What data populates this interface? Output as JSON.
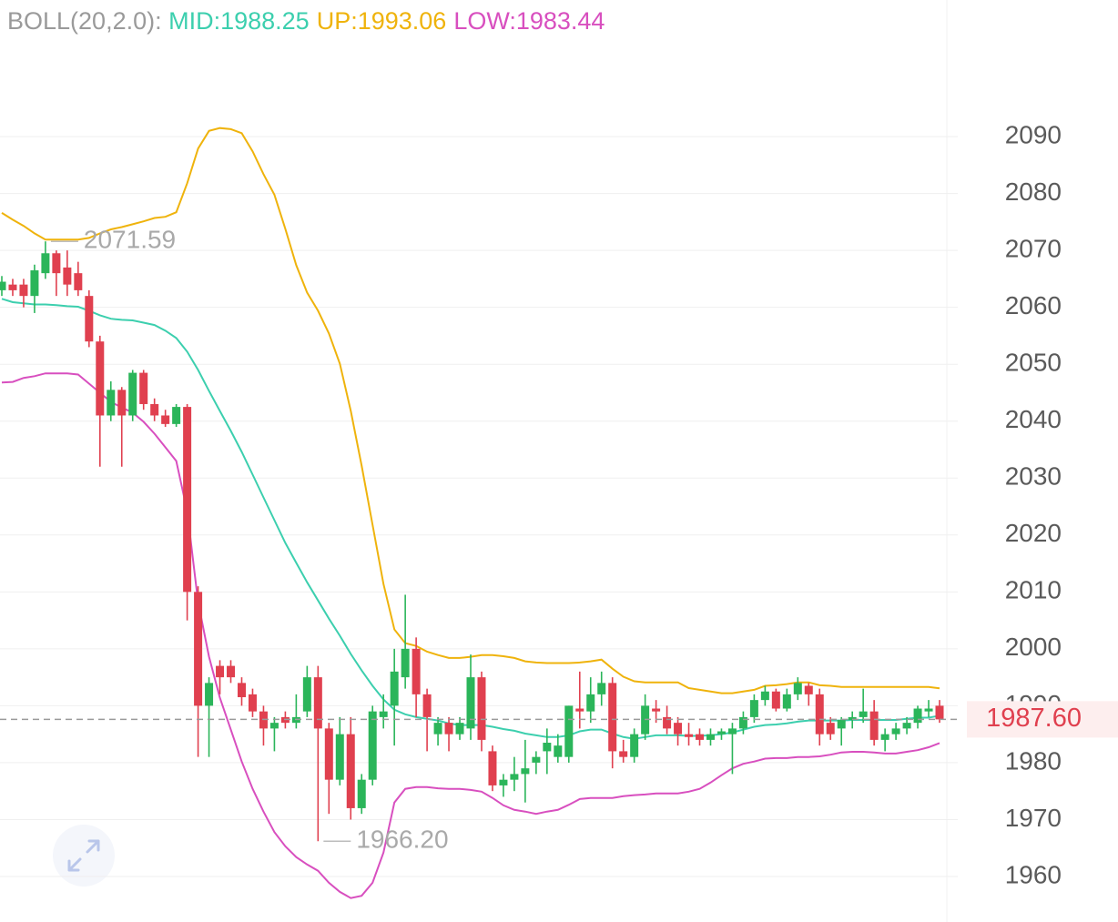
{
  "chart_data": {
    "type": "candlestick",
    "indicator": "BOLL(20,2.0):",
    "ylim": [
      1952,
      2114
    ],
    "yticks": [
      1960,
      1970,
      1980,
      1990,
      2000,
      2010,
      2020,
      2030,
      2040,
      2050,
      2060,
      2070,
      2080,
      2090
    ],
    "grid": true,
    "up_color": "#2bb55a",
    "down_color": "#e0404f",
    "open": [
      2063,
      2064,
      2064,
      2062,
      2066,
      2069.5,
      2067,
      2066,
      2062,
      2054,
      2041,
      2045.5,
      2041,
      2048.5,
      2043,
      2041,
      2039.5,
      2042.5,
      2010,
      1990,
      1997,
      1997,
      1994,
      1992,
      1989,
      1986,
      1988,
      1987,
      1989,
      1995,
      1986,
      1977,
      1985,
      1972,
      1977,
      1988,
      1990,
      1995,
      2000,
      1992,
      1985,
      1987,
      1985,
      1986,
      1995,
      1982,
      1976,
      1977,
      1978,
      1980,
      1982,
      1981,
      1981,
      1989.5,
      1989,
      1992,
      1994,
      1982,
      1981,
      1985,
      1989.5,
      1988,
      1987,
      1985,
      1985,
      1984,
      1985,
      1985,
      1986,
      1988,
      1991,
      1992.5,
      1989.5,
      1992,
      1993.5,
      1992,
      1987,
      1986,
      1987.5,
      1988,
      1989,
      1984,
      1985,
      1986,
      1987,
      1989,
      1990
    ],
    "high": [
      2065.5,
      2065,
      2065,
      2067.5,
      2071.59,
      2070,
      2070,
      2068,
      2063,
      2055,
      2047,
      2046,
      2049,
      2049,
      2044,
      2042,
      2043,
      2043,
      2011,
      1995,
      1998,
      1998,
      1995,
      1993,
      1990,
      1988,
      1989,
      1992,
      1997,
      1997,
      1987,
      1988,
      1988,
      1978,
      1990,
      1992,
      2000,
      2009.5,
      2002,
      1993,
      1988,
      1988,
      1988,
      1999,
      1996,
      1983,
      1978,
      1981,
      1984,
      1982,
      1986,
      1985,
      1990,
      1996,
      1995,
      1996,
      1995,
      1984,
      1986,
      1992,
      1991,
      1990,
      1988,
      1987,
      1986,
      1986,
      1986,
      1987,
      1989,
      1992,
      1993.5,
      1993,
      1993,
      1995,
      1994,
      1993,
      1988,
      1988,
      1989,
      1993,
      1991,
      1986,
      1987,
      1988,
      1990,
      1991,
      1991
    ],
    "low": [
      2062,
      2062,
      2060,
      2059,
      2065,
      2062,
      2062,
      2062,
      2053,
      2032,
      2040,
      2032,
      2040,
      2042,
      2040,
      2039,
      2039,
      2005,
      1981,
      1981,
      1992,
      1994,
      1990,
      1988,
      1983,
      1982,
      1986,
      1986,
      1988,
      1966.2,
      1971,
      1976,
      1970,
      1971,
      1976,
      1986,
      1983,
      1993,
      1988,
      1982,
      1983,
      1982,
      1984,
      1984,
      1982,
      1975,
      1974,
      1975,
      1973,
      1978,
      1978,
      1980,
      1980,
      1986,
      1987,
      1990,
      1979,
      1980,
      1980,
      1984,
      1987,
      1985,
      1983,
      1983,
      1983,
      1983,
      1984,
      1978,
      1985,
      1987,
      1990,
      1989,
      1989,
      1991,
      1990,
      1983,
      1984,
      1983,
      1986,
      1987,
      1983,
      1982,
      1984,
      1985,
      1986,
      1988,
      1987
    ],
    "close": [
      2064.5,
      2063,
      2062,
      2066.5,
      2069.5,
      2066,
      2064,
      2063,
      2054,
      2041,
      2045.5,
      2041,
      2048.5,
      2043,
      2041,
      2039.5,
      2042.5,
      2010,
      1990,
      1994,
      1995,
      1995,
      1991.5,
      1989,
      1986,
      1987,
      1987,
      1988,
      1995,
      1986,
      1977,
      1985,
      1972,
      1977,
      1989,
      1989,
      1996,
      2000,
      1992,
      1988,
      1987,
      1985,
      1987,
      1995,
      1984,
      1976,
      1977,
      1978,
      1979,
      1981,
      1983.5,
      1983,
      1990,
      1989,
      1992,
      1994,
      1982,
      1981,
      1985,
      1990,
      1989,
      1986,
      1985,
      1984.5,
      1984,
      1985,
      1985.5,
      1986,
      1988,
      1991,
      1992.5,
      1989.5,
      1992,
      1994,
      1992,
      1985,
      1985,
      1987.5,
      1988,
      1989,
      1984,
      1985,
      1986,
      1987,
      1989.5,
      1989.5,
      1987.6
    ],
    "series": [
      {
        "name": "MID:1988.25",
        "color": "#3ccfae",
        "values": [
          2061.5,
          2060.9,
          2060.7,
          2060.5,
          2060.5,
          2060.4,
          2060.2,
          2060.1,
          2059.4,
          2058.6,
          2058.0,
          2057.8,
          2057.7,
          2057.3,
          2056.9,
          2055.9,
          2054.6,
          2052.2,
          2049.0,
          2045.3,
          2041.8,
          2038.3,
          2034.6,
          2030.6,
          2026.6,
          2022.6,
          2018.6,
          2015.1,
          2011.7,
          2008.5,
          2005.3,
          2002.3,
          1999.1,
          1996.2,
          1993.5,
          1991.1,
          1989.3,
          1988.5,
          1988.0,
          1987.7,
          1987.4,
          1986.9,
          1986.6,
          1986.6,
          1986.6,
          1986.3,
          1985.9,
          1985.6,
          1985.1,
          1984.8,
          1984.5,
          1984.5,
          1984.8,
          1985.5,
          1985.8,
          1985.8,
          1985.1,
          1984.5,
          1984.2,
          1984.5,
          1984.8,
          1984.8,
          1984.8,
          1984.7,
          1984.7,
          1984.8,
          1985.0,
          1985.3,
          1985.8,
          1986.3,
          1986.6,
          1986.7,
          1986.9,
          1987.2,
          1987.4,
          1987.4,
          1987.4,
          1987.4,
          1987.5,
          1987.5,
          1987.5,
          1987.5,
          1987.5,
          1987.7,
          1987.9,
          1987.9,
          1988.25
        ]
      },
      {
        "name": "UP:1993.06",
        "color": "#efb30c",
        "values": [
          2076.6,
          2075.4,
          2074.3,
          2073.0,
          2071.9,
          2071.9,
          2071.9,
          2071.9,
          2072.2,
          2073.0,
          2073.7,
          2074.1,
          2074.6,
          2075.1,
          2075.7,
          2075.9,
          2076.7,
          2081.8,
          2087.9,
          2091.0,
          2091.5,
          2091.3,
          2090.6,
          2087.4,
          2083.4,
          2079.8,
          2073.8,
          2067.4,
          2062.6,
          2059.4,
          2055.4,
          2050.1,
          2041.8,
          2032.2,
          2021.8,
          2011.4,
          2003.4,
          2001.0,
          2000.5,
          1999.5,
          1998.9,
          1998.4,
          1998.4,
          1998.6,
          1998.9,
          1998.9,
          1998.7,
          1998.4,
          1997.8,
          1997.6,
          1997.5,
          1997.5,
          1997.5,
          1997.6,
          1997.8,
          1998.1,
          1996.5,
          1995.1,
          1994.3,
          1994.1,
          1994.1,
          1994.1,
          1994.1,
          1993.1,
          1992.8,
          1992.5,
          1992.2,
          1992.2,
          1992.5,
          1992.8,
          1993.5,
          1993.6,
          1993.8,
          1994.1,
          1994.1,
          1993.6,
          1993.5,
          1993.3,
          1993.3,
          1993.3,
          1993.3,
          1993.3,
          1993.3,
          1993.3,
          1993.3,
          1993.3,
          1993.06
        ]
      },
      {
        "name": "LOW:1983.44",
        "color": "#d84fbf",
        "values": [
          2046.8,
          2046.9,
          2047.6,
          2047.9,
          2048.4,
          2048.4,
          2048.4,
          2048.2,
          2046.6,
          2045.0,
          2043.4,
          2042.4,
          2041.5,
          2039.9,
          2037.8,
          2035.4,
          2033.0,
          2024.2,
          2008.2,
          1998.6,
          1991.4,
          1985.8,
          1980.2,
          1975.4,
          1971.4,
          1967.8,
          1965.3,
          1963.4,
          1962.1,
          1961.0,
          1958.9,
          1957.3,
          1956.2,
          1956.6,
          1958.9,
          1964.2,
          1973.0,
          1975.4,
          1975.7,
          1975.7,
          1975.5,
          1975.4,
          1975.4,
          1975.2,
          1974.9,
          1973.8,
          1972.5,
          1971.7,
          1971.4,
          1971.0,
          1971.4,
          1971.7,
          1972.6,
          1973.6,
          1973.8,
          1973.8,
          1973.8,
          1974.1,
          1974.3,
          1974.4,
          1974.6,
          1974.6,
          1974.6,
          1974.9,
          1975.4,
          1976.5,
          1977.8,
          1979.0,
          1979.8,
          1980.2,
          1980.7,
          1980.8,
          1980.8,
          1981.0,
          1981.0,
          1981.1,
          1981.4,
          1981.8,
          1981.9,
          1981.9,
          1981.8,
          1981.6,
          1981.6,
          1981.9,
          1982.2,
          1982.7,
          1983.44
        ]
      }
    ],
    "annotations": [
      {
        "index": 4,
        "value": 2071.59,
        "label": "2071.59"
      },
      {
        "index": 29,
        "value": 1966.2,
        "label": "1966.20"
      }
    ],
    "last_price": {
      "value": 1987.6,
      "label": "1987.60"
    }
  }
}
